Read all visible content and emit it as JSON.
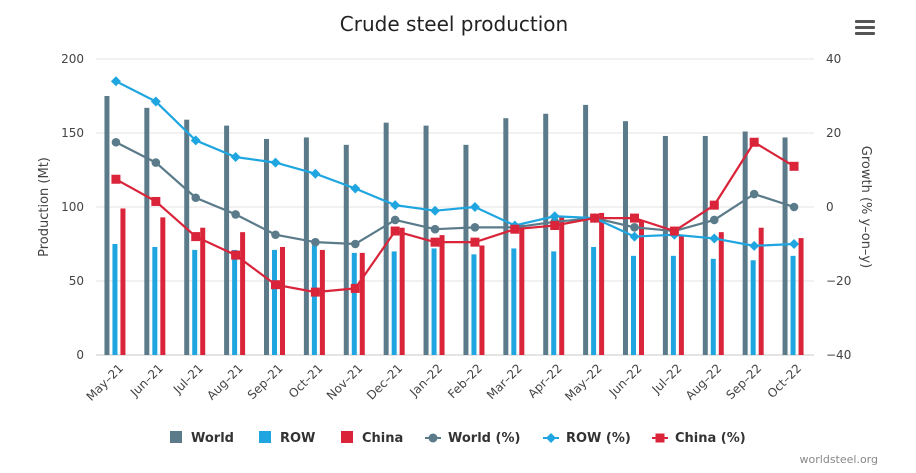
{
  "menu": {
    "icon": "hamburger-menu-icon"
  },
  "credit": "worldsteel.org",
  "chart_data": {
    "type": "bar-line-combo",
    "title": "Crude steel production",
    "categories": [
      "May–21",
      "Jun–21",
      "Jul–21",
      "Aug–21",
      "Sep–21",
      "Oct–21",
      "Nov–21",
      "Dec–21",
      "Jan–22",
      "Feb–22",
      "Mar–22",
      "Apr–22",
      "May–22",
      "Jun–22",
      "Jul–22",
      "Aug–22",
      "Sep–22",
      "Oct–22"
    ],
    "y_left": {
      "label": "Production (Mt)",
      "min": 0,
      "max": 200,
      "ticks": [
        "0",
        "50",
        "100",
        "150",
        "200"
      ]
    },
    "y_right": {
      "label": "Growth (% y–on–y)",
      "min": -40,
      "max": 40,
      "ticks": [
        "−40",
        "−20",
        "0",
        "20",
        "40"
      ]
    },
    "bar_series": [
      {
        "name": "World",
        "color": "#5b7b8a",
        "values": [
          175,
          167,
          159,
          155,
          146,
          147,
          142,
          157,
          155,
          142,
          160,
          163,
          169,
          158,
          148,
          148,
          151,
          147
        ]
      },
      {
        "name": "ROW",
        "color": "#1fa6e0",
        "values": [
          75,
          73,
          71,
          71,
          71,
          74,
          69,
          70,
          72,
          68,
          72,
          70,
          73,
          67,
          67,
          65,
          64,
          67
        ]
      },
      {
        "name": "China",
        "color": "#d9243a",
        "values": [
          99,
          93,
          86,
          83,
          73,
          71,
          69,
          86,
          81,
          74,
          88,
          93,
          96,
          91,
          81,
          83,
          86,
          79
        ]
      }
    ],
    "line_series": [
      {
        "name": "World (%)",
        "color": "#5b7b8a",
        "marker": "circle",
        "values": [
          17.5,
          12,
          2.5,
          -2,
          -7.5,
          -9.5,
          -10,
          -3.5,
          -6,
          -5.5,
          -5.5,
          -4,
          -3,
          -5.5,
          -6.5,
          -3.5,
          3.5,
          0
        ]
      },
      {
        "name": "ROW (%)",
        "color": "#1fa6e0",
        "marker": "diamond",
        "values": [
          34,
          28.5,
          18,
          13.5,
          12,
          9,
          5,
          0.5,
          -1,
          0,
          -5,
          -2.5,
          -3,
          -8,
          -7.5,
          -8.5,
          -10.5,
          -10
        ]
      },
      {
        "name": "China (%)",
        "color": "#d9243a",
        "marker": "square",
        "values": [
          7.5,
          1.5,
          -8,
          -13,
          -21,
          -23,
          -22,
          -6.5,
          -9.5,
          -9.5,
          -6,
          -5,
          -3,
          -3,
          -6.5,
          0.5,
          17.5,
          11
        ]
      }
    ],
    "legend": {
      "position": "bottom",
      "items": [
        "World",
        "ROW",
        "China",
        "World (%)",
        "ROW (%)",
        "China (%)"
      ]
    }
  }
}
